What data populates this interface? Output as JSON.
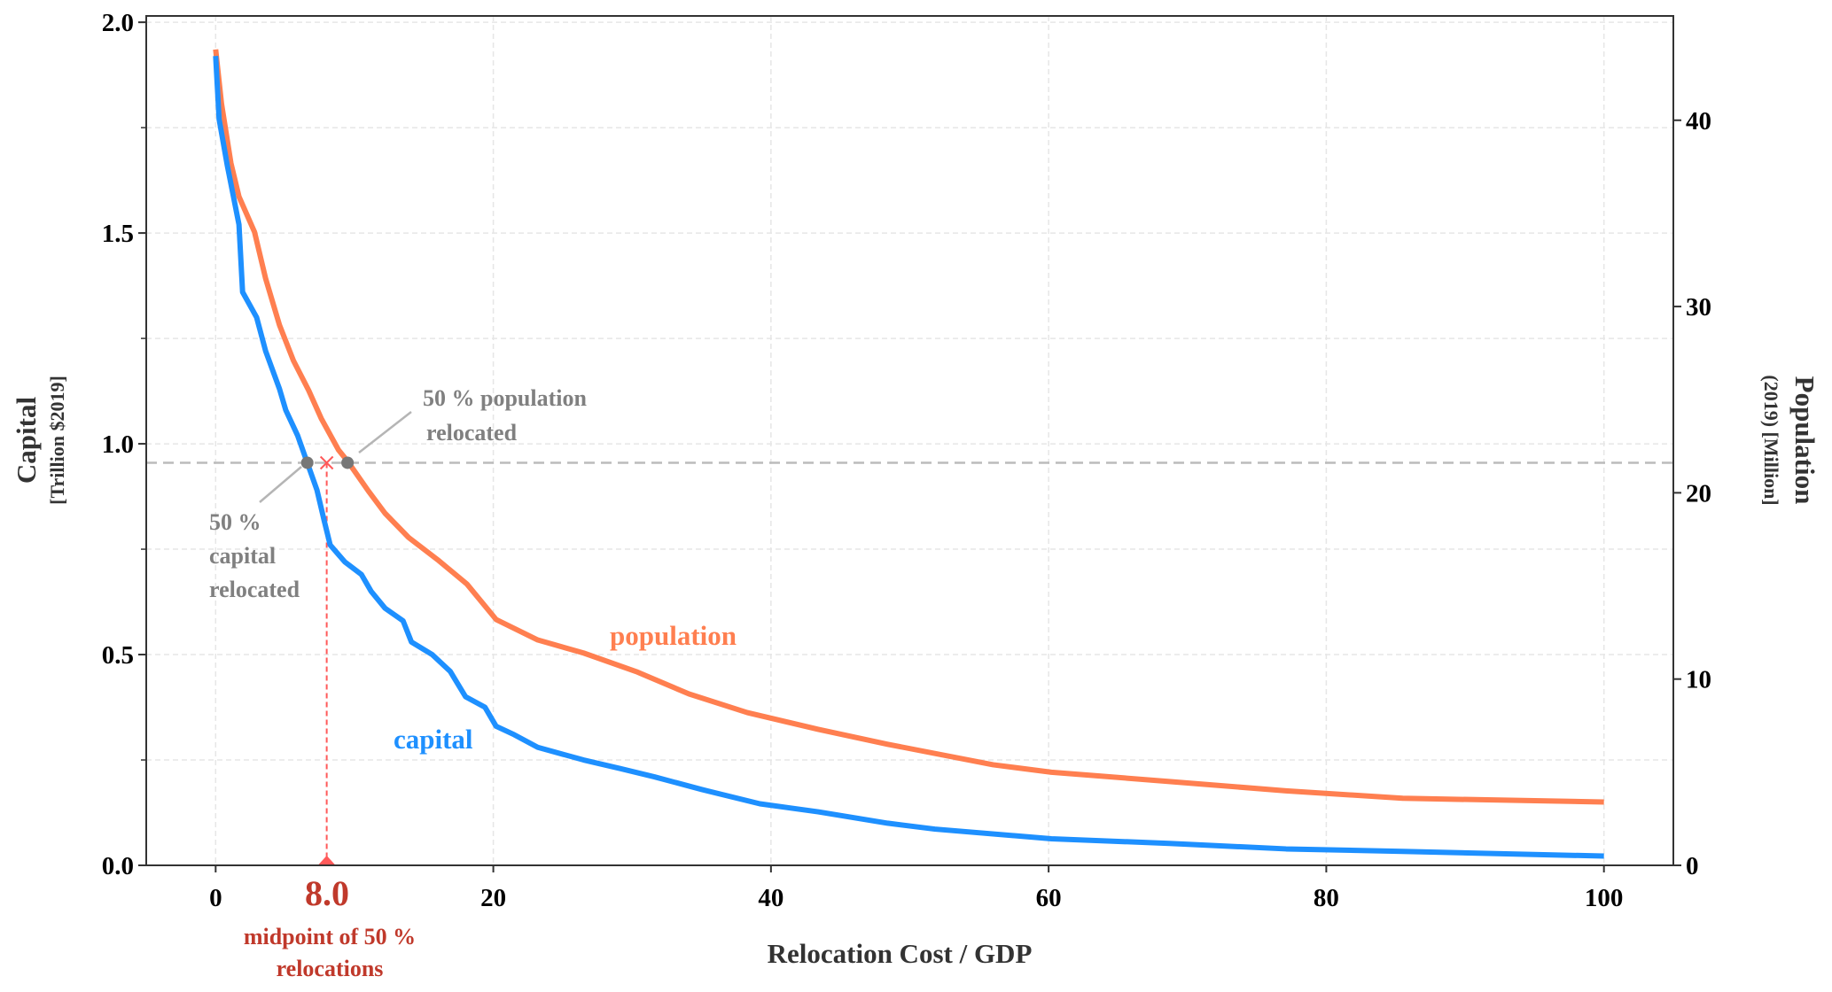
{
  "chart_data": {
    "type": "line",
    "xlabel": "Relocation Cost / GDP",
    "ylabel_left": {
      "title": "Capital",
      "subtitle": "[Trillion $2019]"
    },
    "ylabel_right": {
      "title": "Population",
      "subtitle": "(2019) [Million]"
    },
    "xlim": [
      -5,
      105
    ],
    "ylim_left": [
      0,
      2.015
    ],
    "ylim_right": [
      0,
      45.6
    ],
    "xticks": [
      0,
      20,
      40,
      60,
      80,
      100
    ],
    "yticks_left": [
      "0.0",
      "0.5",
      "1.0",
      "1.5",
      "2.0"
    ],
    "yticks_left_values": [
      0,
      0.5,
      1.0,
      1.5,
      2.0
    ],
    "yticks_right": [
      0,
      10,
      20,
      30,
      40
    ],
    "grid": true,
    "colors": {
      "capital": "#1E90FF",
      "population": "#FF7F50",
      "annotation": "#808080",
      "midpoint": "#C0392B",
      "midline": "#FF5A5A"
    },
    "series": [
      {
        "name": "capital",
        "axis": "left",
        "label": "capital",
        "x": [
          0,
          0.25,
          0.84,
          1.68,
          1.94,
          2.95,
          3.6,
          4.6,
          5.05,
          5.9,
          6.6,
          7.3,
          7.8,
          8.25,
          9.3,
          10.5,
          11.2,
          12.2,
          13.5,
          14.1,
          15.6,
          16.9,
          18.0,
          19.4,
          20.2,
          21.5,
          23.2,
          26.5,
          29.1,
          31.6,
          35,
          39.2,
          43.4,
          48.4,
          51.8,
          60.2,
          68.7,
          77.1,
          85.5,
          100
        ],
        "y": [
          1.92,
          1.77,
          1.66,
          1.52,
          1.36,
          1.3,
          1.22,
          1.13,
          1.08,
          1.02,
          0.955,
          0.89,
          0.82,
          0.76,
          0.72,
          0.69,
          0.65,
          0.61,
          0.58,
          0.53,
          0.5,
          0.46,
          0.4,
          0.375,
          0.33,
          0.31,
          0.28,
          0.25,
          0.23,
          0.21,
          0.18,
          0.146,
          0.127,
          0.1,
          0.086,
          0.063,
          0.052,
          0.039,
          0.033,
          0.022
        ]
      },
      {
        "name": "population",
        "axis": "right",
        "label": "population",
        "x": [
          0,
          0.42,
          1.1,
          1.68,
          2.8,
          3.6,
          4.6,
          5.6,
          6.7,
          7.6,
          8.85,
          9.5,
          11,
          12.2,
          13.9,
          16,
          18.1,
          20.2,
          23.2,
          26.5,
          30.3,
          34.1,
          38.3,
          43.4,
          48.4,
          56,
          60.2,
          68.7,
          77.1,
          85.5,
          100
        ],
        "y": [
          43.8,
          40.9,
          37.7,
          35.9,
          34.0,
          31.5,
          29.0,
          27.1,
          25.5,
          24.0,
          22.3,
          21.7,
          20.1,
          18.9,
          17.6,
          16.4,
          15.1,
          13.2,
          12.1,
          11.4,
          10.4,
          9.2,
          8.2,
          7.3,
          6.5,
          5.4,
          5.0,
          4.5,
          4.0,
          3.6,
          3.4
        ]
      }
    ],
    "half_line_capital": 0.955,
    "capital_half_x": 6.6,
    "population_half_x": 9.5,
    "midpoint_x": 8.0,
    "annotations": {
      "midpoint_value": "8.0",
      "midpoint_text": [
        "midpoint of 50 %",
        "relocations"
      ],
      "population_half": [
        "50 % population",
        "relocated"
      ],
      "capital_half": [
        "50 %",
        "capital",
        "relocated"
      ]
    }
  }
}
